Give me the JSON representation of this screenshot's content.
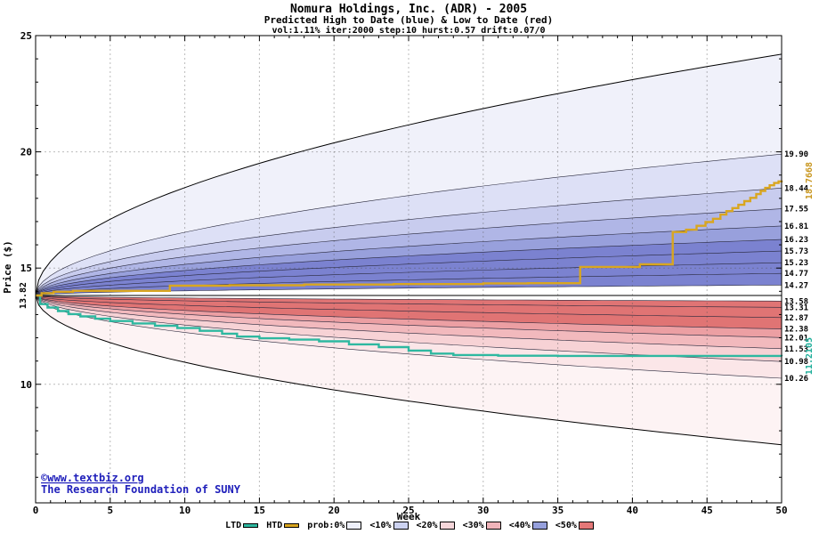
{
  "title": "Nomura Holdings, Inc. (ADR) - 2005",
  "subtitle": "Predicted High to Date (blue) &  Low to Date (red)",
  "params_line": "vol:1.11% iter:2000 step:10 hurst:0.57 drift:0.07/0",
  "start_price_label": "13.82",
  "htd_final_label": "18.7668",
  "ltd_final_label": "11.2105",
  "x_axis": {
    "label": "Week"
  },
  "y_axis": {
    "label": "Price ($)"
  },
  "watermark": {
    "line1": "©www.textbiz.org",
    "line2": "The Research Foundation of SUNY"
  },
  "legend": {
    "items": [
      {
        "label": "LTD",
        "color": "#2eb8a0",
        "type": "line"
      },
      {
        "label": "HTD",
        "color": "#d9a620",
        "type": "line"
      },
      {
        "label": "prob:0%",
        "color": "#eef0fb",
        "type": "band"
      },
      {
        "label": "<10%",
        "color": "#ccd2f0",
        "type": "band"
      },
      {
        "label": "<20%",
        "color": "#f5d6da",
        "type": "band"
      },
      {
        "label": "<30%",
        "color": "#f0b4ba",
        "type": "band"
      },
      {
        "label": "<40%",
        "color": "#96a0dc",
        "type": "band"
      },
      {
        "label": "<50%",
        "color": "#e47878",
        "type": "band"
      }
    ]
  },
  "chart_data": {
    "type": "area",
    "description": "Monte Carlo probability fan of predicted high-to-date (blue bands) and low-to-date (red bands) prices over 50 weeks, with stepped HTD and LTD realized lines.",
    "x": {
      "label": "Week",
      "min": 0,
      "max": 50,
      "ticks": [
        0,
        5,
        10,
        15,
        20,
        25,
        30,
        35,
        40,
        45,
        50
      ]
    },
    "y": {
      "label": "Price ($)",
      "min": 4.9,
      "max": 25,
      "ticks": [
        10,
        15,
        20,
        25
      ]
    },
    "start_price": 13.82,
    "upper_band_boundaries": [
      24.2,
      19.9,
      18.44,
      17.55,
      16.81,
      16.23,
      15.73,
      15.23,
      14.77,
      14.27
    ],
    "upper_band_colors": [
      "#f0f1fa",
      "#dde0f6",
      "#c8ccee",
      "#b0b6e6",
      "#98a0dc",
      "#7b82d0",
      "#7b82d0",
      "#7b82d0",
      "#7b82d0"
    ],
    "lower_band_boundaries": [
      13.58,
      13.31,
      12.87,
      12.38,
      12.01,
      11.53,
      10.98,
      10.26,
      7.4
    ],
    "lower_band_colors": [
      "#e07474",
      "#e07474",
      "#e07474",
      "#ec9fa3",
      "#f2b9bd",
      "#f7d2d5",
      "#fbe6e8",
      "#fdf3f4"
    ],
    "right_axis_labels": [
      "19.90",
      "18.44",
      "17.55",
      "16.81",
      "16.23",
      "15.73",
      "15.23",
      "14.77",
      "14.27",
      "13.58",
      "13.31",
      "12.87",
      "12.38",
      "12.01",
      "11.53",
      "10.98",
      "10.26"
    ],
    "htd": {
      "name": "HTD",
      "color": "#d9a620",
      "final": 18.7668,
      "steps": [
        [
          0,
          13.82
        ],
        [
          0.4,
          13.92
        ],
        [
          1.2,
          13.98
        ],
        [
          2.5,
          14.02
        ],
        [
          9,
          14.24
        ],
        [
          13,
          14.26
        ],
        [
          18,
          14.29
        ],
        [
          24,
          14.31
        ],
        [
          30,
          14.34
        ],
        [
          33,
          14.35
        ],
        [
          36.5,
          15.05
        ],
        [
          40.5,
          15.16
        ],
        [
          42.7,
          16.55
        ],
        [
          43.6,
          16.65
        ],
        [
          44.3,
          16.82
        ],
        [
          44.9,
          16.98
        ],
        [
          45.4,
          17.12
        ],
        [
          45.9,
          17.3
        ],
        [
          46.3,
          17.45
        ],
        [
          46.7,
          17.58
        ],
        [
          47.1,
          17.72
        ],
        [
          47.5,
          17.88
        ],
        [
          47.9,
          18.02
        ],
        [
          48.3,
          18.18
        ],
        [
          48.6,
          18.32
        ],
        [
          48.9,
          18.45
        ],
        [
          49.2,
          18.56
        ],
        [
          49.5,
          18.66
        ],
        [
          49.8,
          18.73
        ],
        [
          50,
          18.7668
        ]
      ]
    },
    "ltd": {
      "name": "LTD",
      "color": "#2eb8a0",
      "final": 11.2105,
      "steps": [
        [
          0,
          13.82
        ],
        [
          0.3,
          13.45
        ],
        [
          0.8,
          13.3
        ],
        [
          1.5,
          13.15
        ],
        [
          2.2,
          13.02
        ],
        [
          3,
          12.92
        ],
        [
          4,
          12.82
        ],
        [
          5,
          12.72
        ],
        [
          6.5,
          12.62
        ],
        [
          8,
          12.52
        ],
        [
          9.5,
          12.42
        ],
        [
          11,
          12.3
        ],
        [
          12.5,
          12.18
        ],
        [
          13.5,
          12.05
        ],
        [
          15,
          11.98
        ],
        [
          17,
          11.92
        ],
        [
          19,
          11.85
        ],
        [
          21,
          11.72
        ],
        [
          23,
          11.6
        ],
        [
          25,
          11.45
        ],
        [
          26.5,
          11.32
        ],
        [
          28,
          11.26
        ],
        [
          31,
          11.23
        ],
        [
          35,
          11.22
        ],
        [
          50,
          11.2105
        ]
      ]
    }
  }
}
